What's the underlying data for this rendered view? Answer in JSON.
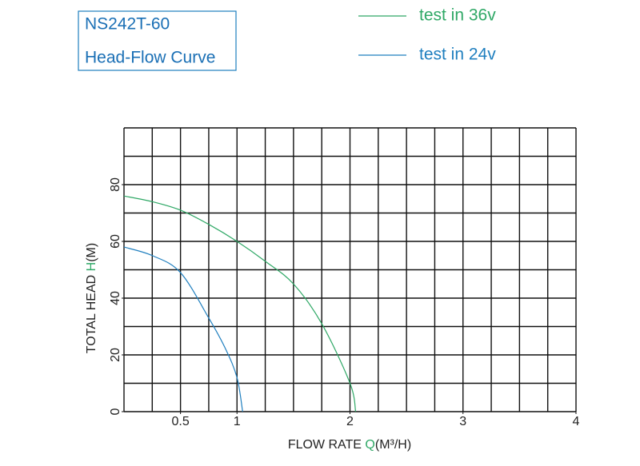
{
  "chart_data": {
    "type": "line",
    "title": "NS242T-60",
    "subtitle": "Head-Flow Curve",
    "x_label": [
      "FLOW RATE ",
      "Q",
      "(M³/H)"
    ],
    "y_label": [
      "TOTAL HEAD ",
      "H",
      "(M)"
    ],
    "series": [
      {
        "name": "test in 36v",
        "color": "#2fa866",
        "x": [
          0,
          0.25,
          0.5,
          0.75,
          1,
          1.25,
          1.5,
          1.75,
          2,
          2.05
        ],
        "values": [
          76,
          74,
          71,
          66,
          60,
          53,
          45,
          31,
          10,
          0
        ]
      },
      {
        "name": "test in 24v",
        "color": "#1f7fbf",
        "x": [
          0,
          0.25,
          0.5,
          0.75,
          0.9,
          1,
          1.05
        ],
        "values": [
          58,
          55,
          49,
          33,
          22,
          12,
          0
        ]
      }
    ],
    "xlim": [
      0,
      4
    ],
    "xticks": [
      0.5,
      1,
      2,
      3,
      4
    ],
    "ylim": [
      0,
      100
    ],
    "yticks": [
      0,
      20,
      40,
      60,
      80
    ],
    "grid": true
  }
}
